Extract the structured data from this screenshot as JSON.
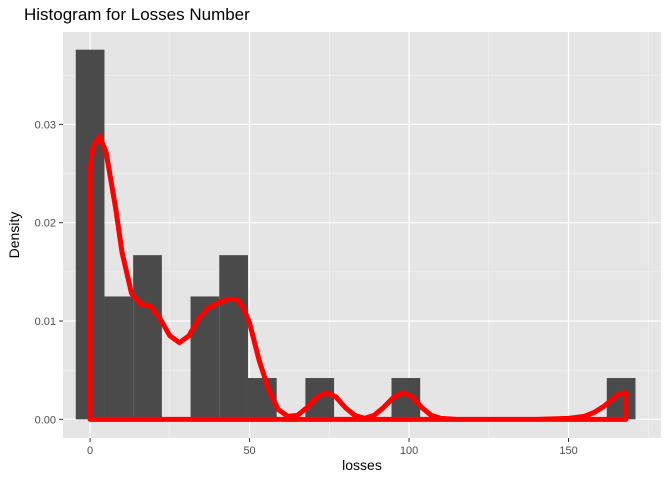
{
  "chart_data": {
    "type": "bar",
    "title": "Histogram for Losses Number",
    "xlabel": "losses",
    "ylabel": "Density",
    "xlim": [
      -8.5,
      179
    ],
    "ylim": [
      -0.0019,
      0.0394
    ],
    "x_ticks": [
      0,
      50,
      100,
      150
    ],
    "x_tick_labels": [
      "0",
      "50",
      "100",
      "150"
    ],
    "y_ticks": [
      0.0,
      0.01,
      0.02,
      0.03
    ],
    "y_tick_labels": [
      "0.00",
      "0.01",
      "0.02",
      "0.03"
    ],
    "grid": true,
    "legend": "none",
    "bin_width": 9,
    "bins": [
      {
        "start": -4.5,
        "end": 4.5,
        "density": 0.0376
      },
      {
        "start": 4.5,
        "end": 13.5,
        "density": 0.0125
      },
      {
        "start": 13.5,
        "end": 22.5,
        "density": 0.0167
      },
      {
        "start": 22.5,
        "end": 31.5,
        "density": 0.0
      },
      {
        "start": 31.5,
        "end": 40.5,
        "density": 0.0125
      },
      {
        "start": 40.5,
        "end": 49.5,
        "density": 0.0167
      },
      {
        "start": 49.5,
        "end": 58.5,
        "density": 0.0042
      },
      {
        "start": 67.5,
        "end": 76.5,
        "density": 0.0042
      },
      {
        "start": 94.5,
        "end": 103.5,
        "density": 0.0042
      },
      {
        "start": 162,
        "end": 171,
        "density": 0.0042
      }
    ],
    "density_curve": {
      "x": [
        0,
        1,
        3,
        5,
        8,
        10,
        13,
        16,
        19,
        22,
        25,
        28,
        31,
        34,
        37,
        40,
        43,
        46,
        48,
        50,
        53,
        56,
        59,
        62,
        65,
        68,
        71,
        74,
        77,
        80,
        83,
        86,
        89,
        92,
        95,
        98,
        101,
        104,
        107,
        110,
        115,
        120,
        130,
        140,
        150,
        155,
        158,
        161,
        164,
        166,
        168
      ],
      "y": [
        0.0255,
        0.0278,
        0.0288,
        0.0272,
        0.0215,
        0.017,
        0.0128,
        0.0117,
        0.0115,
        0.0102,
        0.0085,
        0.0078,
        0.0085,
        0.0102,
        0.0113,
        0.0118,
        0.0122,
        0.0122,
        0.0114,
        0.0098,
        0.006,
        0.003,
        0.001,
        0.0003,
        0.0004,
        0.0012,
        0.0022,
        0.0027,
        0.0023,
        0.0012,
        0.0004,
        0.0001,
        0.0004,
        0.0012,
        0.0022,
        0.0027,
        0.0023,
        0.0012,
        0.0004,
        0.0001,
        0.0,
        0.0,
        0.0,
        0.0,
        0.0001,
        0.0003,
        0.0007,
        0.0013,
        0.0021,
        0.0026,
        0.0027
      ],
      "color": "#ff0000"
    },
    "bar_color": "#4a4a4a",
    "panel_color": "#e5e5e5"
  }
}
